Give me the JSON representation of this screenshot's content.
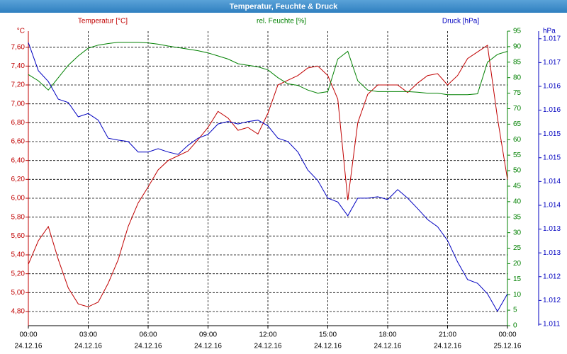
{
  "chart_data": {
    "type": "line",
    "title": "Temperatur, Feuchte & Druck",
    "x": [
      0,
      0.5,
      1,
      1.5,
      2,
      2.5,
      3,
      3.5,
      4,
      4.5,
      5,
      5.5,
      6,
      6.5,
      7,
      7.5,
      8,
      8.5,
      9,
      9.5,
      10,
      10.5,
      11,
      11.5,
      12,
      12.5,
      13,
      13.5,
      14,
      14.5,
      15,
      15.5,
      16,
      16.5,
      17,
      17.5,
      18,
      18.5,
      19,
      19.5,
      20,
      20.5,
      21,
      21.5,
      22,
      22.5,
      23,
      23.5,
      24
    ],
    "xlim": [
      0,
      24
    ],
    "xticks": [
      {
        "value": 0,
        "label": "00:00"
      },
      {
        "value": 3,
        "label": "03:00"
      },
      {
        "value": 6,
        "label": "06:00"
      },
      {
        "value": 9,
        "label": "09:00"
      },
      {
        "value": 12,
        "label": "12:00"
      },
      {
        "value": 15,
        "label": "15:00"
      },
      {
        "value": 18,
        "label": "18:00"
      },
      {
        "value": 21,
        "label": "21:00"
      },
      {
        "value": 24,
        "label": "00:00"
      }
    ],
    "xtick_dates": [
      "24.12.16",
      "24.12.16",
      "24.12.16",
      "24.12.16",
      "24.12.16",
      "24.12.16",
      "24.12.16",
      "24.12.16",
      "25.12.16"
    ],
    "ylabel": "°C",
    "ylim": [
      4.65,
      7.77
    ],
    "yticks": [
      {
        "value": 4.8,
        "label": "4,80"
      },
      {
        "value": 5.0,
        "label": "5,00"
      },
      {
        "value": 5.2,
        "label": "5,20"
      },
      {
        "value": 5.4,
        "label": "5,40"
      },
      {
        "value": 5.6,
        "label": "5,60"
      },
      {
        "value": 5.8,
        "label": "5,80"
      },
      {
        "value": 6.0,
        "label": "6,00"
      },
      {
        "value": 6.2,
        "label": "6,20"
      },
      {
        "value": 6.4,
        "label": "6,40"
      },
      {
        "value": 6.6,
        "label": "6,60"
      },
      {
        "value": 6.8,
        "label": "6,80"
      },
      {
        "value": 7.0,
        "label": "7,00"
      },
      {
        "value": 7.2,
        "label": "7,20"
      },
      {
        "value": 7.4,
        "label": "7,40"
      },
      {
        "value": 7.6,
        "label": "7,60"
      }
    ],
    "y2lim": [
      0,
      95
    ],
    "y2ticks": [
      0,
      5,
      10,
      15,
      20,
      25,
      30,
      35,
      40,
      45,
      50,
      55,
      60,
      65,
      70,
      75,
      80,
      85,
      90,
      95
    ],
    "y3label": "hPa",
    "y3lim": [
      1.01097,
      1.01716
    ],
    "y3ticks": [
      1.011,
      {
        "value": 1.0115,
        "label": "1.012"
      },
      1.012,
      {
        "value": 1.0125,
        "label": "1.013"
      },
      1.013,
      {
        "value": 1.0135,
        "label": "1.014"
      },
      1.014,
      {
        "value": 1.0145,
        "label": "1.015"
      },
      1.015,
      {
        "value": 1.0155,
        "label": "1.016"
      },
      1.016,
      {
        "value": 1.0165,
        "label": "1.017"
      },
      1.017
    ],
    "grid": true,
    "series": [
      {
        "name": "Temperatur [°C]",
        "color": "#c00000",
        "axis": "y",
        "values": [
          5.3,
          5.55,
          5.7,
          5.35,
          5.05,
          4.88,
          4.85,
          4.9,
          5.1,
          5.35,
          5.7,
          5.95,
          6.12,
          6.3,
          6.4,
          6.45,
          6.5,
          6.62,
          6.75,
          6.92,
          6.85,
          6.72,
          6.75,
          6.68,
          6.9,
          7.2,
          7.25,
          7.3,
          7.38,
          7.4,
          7.3,
          7.05,
          5.98,
          6.8,
          7.1,
          7.2,
          7.2,
          7.2,
          7.12,
          7.22,
          7.3,
          7.32,
          7.2,
          7.3,
          7.48,
          7.55,
          7.62,
          6.85,
          6.2
        ]
      },
      {
        "name": "rel. Feuchte [%]",
        "color": "#008000",
        "axis": "y2",
        "values": [
          81,
          79,
          76,
          80,
          84,
          87,
          89.5,
          90.5,
          91,
          91.4,
          91.4,
          91.4,
          91.2,
          90.8,
          90.2,
          89.7,
          89.2,
          88.7,
          88,
          87,
          86,
          84.5,
          84,
          83.5,
          82.5,
          80,
          78,
          77.5,
          76,
          75,
          75.5,
          86,
          88.5,
          79,
          76,
          75.5,
          75.5,
          75.5,
          75.5,
          75.3,
          75,
          75,
          74.5,
          74.5,
          74.5,
          74.8,
          85,
          87.5,
          88.5
        ]
      },
      {
        "name": "Druck [hPa]",
        "color": "#0000c0",
        "axis": "y3",
        "values": [
          1.01692,
          1.01633,
          1.0161,
          1.01573,
          1.01566,
          1.01536,
          1.01543,
          1.01529,
          1.01491,
          1.01487,
          1.01484,
          1.01462,
          1.01462,
          1.01469,
          1.01462,
          1.01457,
          1.01476,
          1.01491,
          1.01499,
          1.01521,
          1.01526,
          1.01521,
          1.01526,
          1.01529,
          1.01517,
          1.01491,
          1.01484,
          1.01462,
          1.01424,
          1.01402,
          1.01365,
          1.01357,
          1.01328,
          1.01365,
          1.01365,
          1.01368,
          1.01362,
          1.01383,
          1.01365,
          1.01343,
          1.0132,
          1.01305,
          1.01276,
          1.01231,
          1.01194,
          1.01186,
          1.01164,
          1.01127,
          1.01164
        ]
      }
    ]
  }
}
